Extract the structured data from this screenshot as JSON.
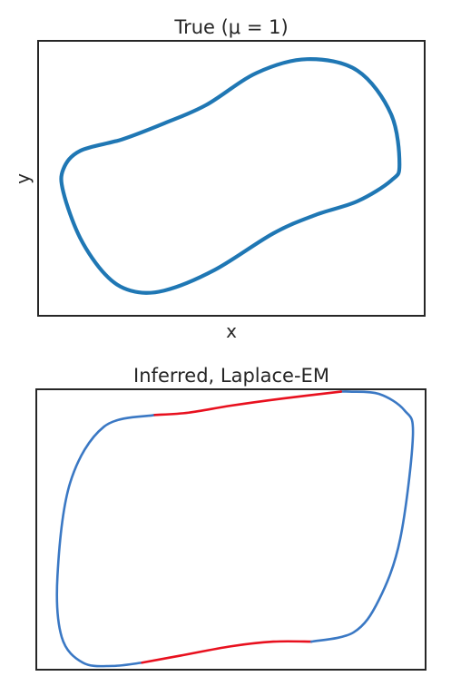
{
  "chart_data": [
    {
      "type": "line",
      "title": "True (μ = 1)",
      "xlabel": "x",
      "ylabel": "y",
      "xlim": [
        -2.3,
        2.3
      ],
      "ylim": [
        -3.0,
        3.0
      ],
      "grid": false,
      "ticks": "none",
      "series": [
        {
          "color": "#1f77b4",
          "x": [
            2.0,
            1.9,
            1.5,
            0.9,
            0.3,
            -0.3,
            -0.8,
            -1.3,
            -1.8,
            -2.0,
            -2.0,
            -1.8,
            -1.5,
            -1.2,
            -0.8,
            -0.2,
            0.5,
            1.0,
            1.5,
            1.9,
            2.0
          ],
          "y": [
            0.3,
            1.4,
            2.35,
            2.6,
            2.3,
            1.6,
            1.2,
            0.85,
            0.6,
            0.2,
            -0.3,
            -1.3,
            -2.1,
            -2.45,
            -2.45,
            -2.0,
            -1.2,
            -0.8,
            -0.5,
            -0.05,
            0.3
          ]
        }
      ]
    },
    {
      "type": "line",
      "title": "Inferred, Laplace-EM",
      "xlabel": "",
      "ylabel": "",
      "xlim": [
        -2.3,
        2.3
      ],
      "ylim": [
        -3.0,
        3.0
      ],
      "grid": false,
      "ticks": "none",
      "series": [
        {
          "color": "#3a78c4",
          "x": [
            -0.9,
            -1.5,
            -1.9,
            -2.05,
            -2.0,
            -1.75,
            -1.4,
            -1.05
          ],
          "y": [
            2.45,
            2.2,
            1.0,
            -1.0,
            -2.3,
            -2.85,
            -2.92,
            -2.85
          ]
        },
        {
          "color": "#e8101e",
          "x": [
            -1.05,
            -0.6,
            0.0,
            0.5,
            0.95
          ],
          "y": [
            -2.85,
            -2.7,
            -2.5,
            -2.4,
            -2.4
          ]
        },
        {
          "color": "#3a78c4",
          "x": [
            0.95,
            1.45,
            1.75,
            2.0,
            2.15,
            2.05,
            1.75,
            1.4,
            1.3
          ],
          "y": [
            -2.4,
            -2.2,
            -1.5,
            -0.2,
            2.0,
            2.55,
            2.9,
            2.95,
            2.95
          ]
        },
        {
          "color": "#e8101e",
          "x": [
            1.3,
            0.6,
            0.0,
            -0.5,
            -0.9
          ],
          "y": [
            2.95,
            2.8,
            2.65,
            2.5,
            2.45
          ]
        }
      ]
    }
  ]
}
